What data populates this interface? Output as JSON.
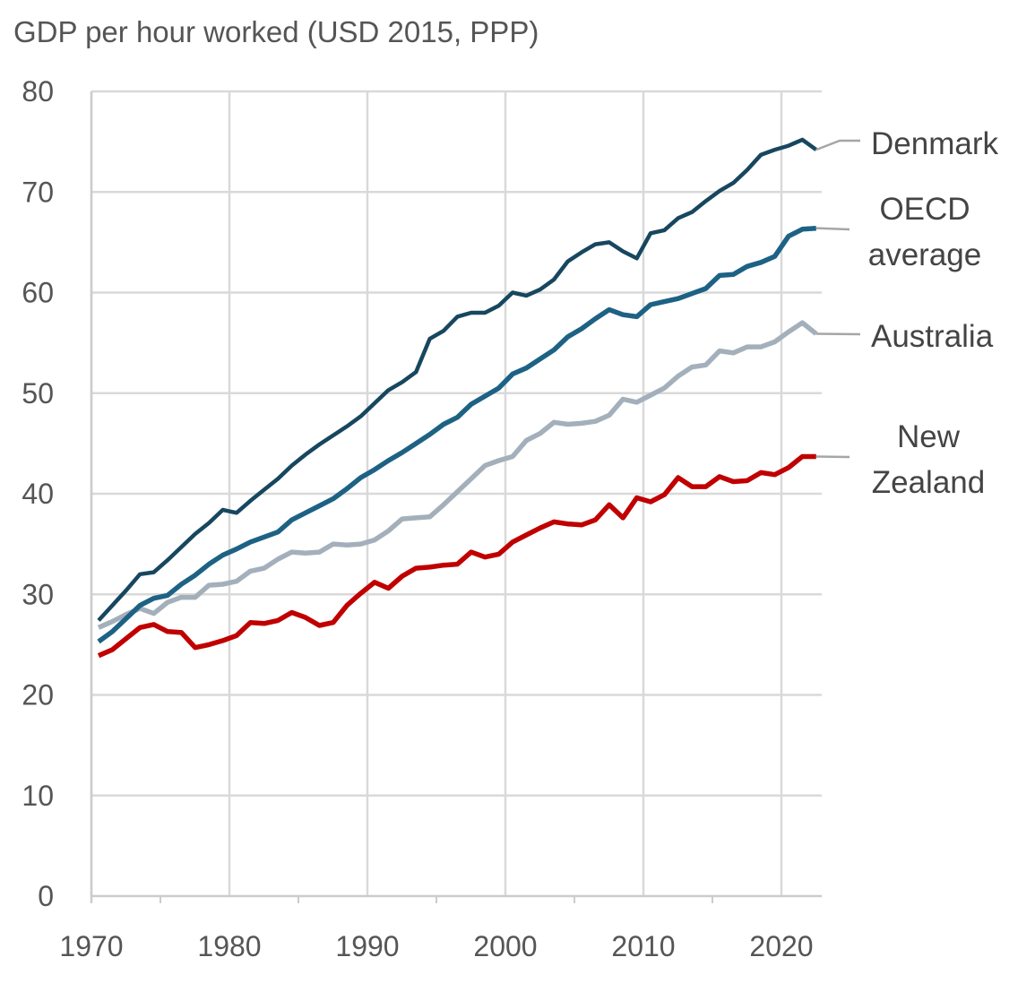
{
  "chart_data": {
    "type": "line",
    "title": "GDP per hour worked (USD 2015, PPP)",
    "xlabel": "",
    "ylabel": "",
    "xlim": [
      1970,
      2023
    ],
    "ylim": [
      0,
      80
    ],
    "x_ticks": [
      "1970",
      "1980",
      "1990",
      "2000",
      "2010",
      "2020"
    ],
    "y_ticks": [
      "0",
      "10",
      "20",
      "30",
      "40",
      "50",
      "60",
      "70",
      "80"
    ],
    "grid": true,
    "legend": "direct labels at right end of lines",
    "x": [
      1970,
      1971,
      1972,
      1973,
      1974,
      1975,
      1976,
      1977,
      1978,
      1979,
      1980,
      1981,
      1982,
      1983,
      1984,
      1985,
      1986,
      1987,
      1988,
      1989,
      1990,
      1991,
      1992,
      1993,
      1994,
      1995,
      1996,
      1997,
      1998,
      1999,
      2000,
      2001,
      2002,
      2003,
      2004,
      2005,
      2006,
      2007,
      2008,
      2009,
      2010,
      2011,
      2012,
      2013,
      2014,
      2015,
      2016,
      2017,
      2018,
      2019,
      2020,
      2021,
      2022
    ],
    "series": [
      {
        "name": "Denmark",
        "label_lines": [
          "Denmark"
        ],
        "color": "#17475f",
        "values": [
          27.4,
          28.9,
          30.4,
          32.0,
          32.2,
          33.4,
          34.7,
          36.0,
          37.1,
          38.4,
          38.1,
          39.3,
          40.4,
          41.5,
          42.8,
          43.9,
          44.9,
          45.8,
          46.7,
          47.7,
          49.0,
          50.3,
          51.1,
          52.1,
          55.4,
          56.2,
          57.6,
          58.0,
          58.0,
          58.7,
          60.0,
          59.7,
          60.3,
          61.3,
          63.1,
          64.0,
          64.8,
          65.0,
          64.1,
          63.4,
          65.9,
          66.2,
          67.4,
          68.0,
          69.1,
          70.1,
          70.9,
          72.2,
          73.7,
          74.2,
          74.6,
          75.2,
          74.2
        ]
      },
      {
        "name": "OECD average",
        "label_lines": [
          "OECD",
          "average"
        ],
        "color": "#1d6284",
        "values": [
          25.3,
          26.3,
          27.6,
          28.9,
          29.6,
          29.9,
          31.0,
          31.9,
          33.0,
          33.9,
          34.5,
          35.2,
          35.7,
          36.2,
          37.4,
          38.1,
          38.8,
          39.5,
          40.5,
          41.6,
          42.4,
          43.3,
          44.1,
          45.0,
          45.9,
          46.9,
          47.6,
          48.9,
          49.7,
          50.5,
          51.9,
          52.5,
          53.4,
          54.3,
          55.6,
          56.4,
          57.4,
          58.3,
          57.8,
          57.6,
          58.8,
          59.1,
          59.4,
          59.9,
          60.4,
          61.7,
          61.8,
          62.6,
          63.0,
          63.6,
          65.6,
          66.3,
          66.4
        ]
      },
      {
        "name": "Australia",
        "label_lines": [
          "Australia"
        ],
        "color": "#a3b0bb",
        "values": [
          26.7,
          27.3,
          28.0,
          28.6,
          28.1,
          29.2,
          29.7,
          29.7,
          30.9,
          31.0,
          31.3,
          32.3,
          32.6,
          33.5,
          34.2,
          34.1,
          34.2,
          35.0,
          34.9,
          35.0,
          35.4,
          36.3,
          37.5,
          37.6,
          37.7,
          38.9,
          40.2,
          41.5,
          42.8,
          43.3,
          43.7,
          45.3,
          46.0,
          47.1,
          46.9,
          47.0,
          47.2,
          47.8,
          49.4,
          49.1,
          49.8,
          50.5,
          51.7,
          52.6,
          52.8,
          54.2,
          54.0,
          54.6,
          54.6,
          55.1,
          56.1,
          57.0,
          55.9
        ]
      },
      {
        "name": "New Zealand",
        "label_lines": [
          "New",
          "Zealand"
        ],
        "color": "#c00000",
        "values": [
          23.9,
          24.5,
          25.6,
          26.7,
          27.0,
          26.3,
          26.2,
          24.7,
          25.0,
          25.4,
          25.9,
          27.2,
          27.1,
          27.4,
          28.2,
          27.7,
          26.9,
          27.2,
          28.9,
          30.1,
          31.2,
          30.6,
          31.8,
          32.6,
          32.7,
          32.9,
          33.0,
          34.2,
          33.7,
          34.0,
          35.2,
          35.9,
          36.6,
          37.2,
          37.0,
          36.9,
          37.4,
          38.9,
          37.6,
          39.6,
          39.2,
          39.9,
          41.6,
          40.7,
          40.7,
          41.7,
          41.2,
          41.3,
          42.1,
          41.9,
          42.6,
          43.7,
          43.7
        ]
      }
    ]
  }
}
